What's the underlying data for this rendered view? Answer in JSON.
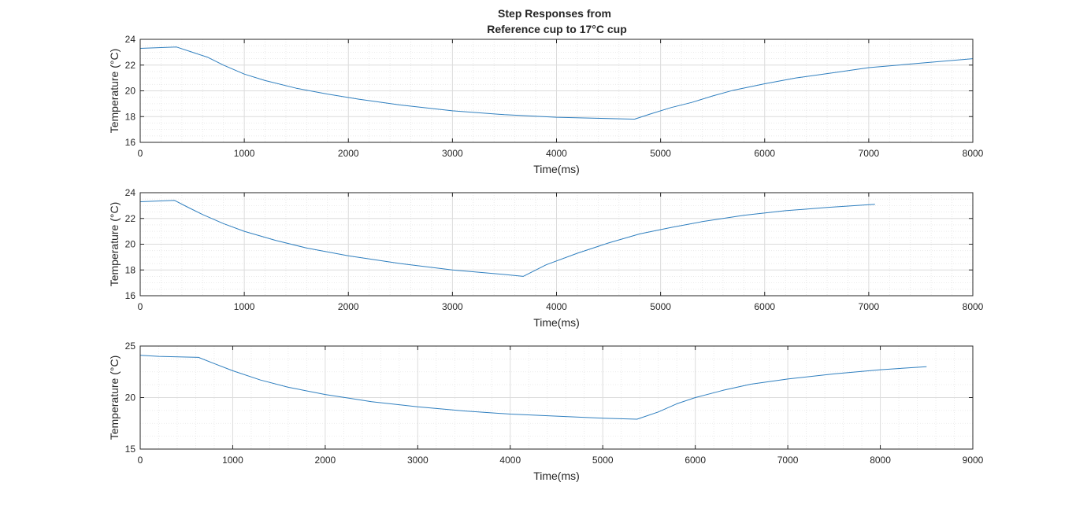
{
  "figure": {
    "title_line1": "Step Responses from",
    "title_line2": "Reference cup to 17°C cup"
  },
  "colors": {
    "line": "#2f7fbf",
    "grid_major": "#dcdcdc",
    "grid_minor": "#e6e6e6",
    "axes": "#262626",
    "background": "#ffffff"
  },
  "chart_data": [
    {
      "type": "line",
      "xlabel": "Time(ms)",
      "ylabel": "Temperature (°C)",
      "xlim": [
        0,
        8000
      ],
      "ylim": [
        16,
        24
      ],
      "xticks": [
        0,
        1000,
        2000,
        3000,
        4000,
        5000,
        6000,
        7000,
        8000
      ],
      "yticks": [
        16,
        18,
        20,
        22,
        24
      ],
      "grid": true,
      "minor_grid": true,
      "series": [
        {
          "x": [
            0,
            350,
            500,
            650,
            800,
            1000,
            1200,
            1500,
            1800,
            2100,
            2500,
            3000,
            3500,
            4000,
            4500,
            4750,
            4900,
            5100,
            5300,
            5500,
            5700,
            6000,
            6300,
            6700,
            7000,
            7500,
            8000
          ],
          "y": [
            23.3,
            23.4,
            23.0,
            22.6,
            22.0,
            21.3,
            20.8,
            20.2,
            19.75,
            19.35,
            18.9,
            18.45,
            18.15,
            17.95,
            17.85,
            17.8,
            18.2,
            18.7,
            19.1,
            19.6,
            20.05,
            20.55,
            21.0,
            21.45,
            21.8,
            22.15,
            22.5
          ]
        }
      ]
    },
    {
      "type": "line",
      "xlabel": "Time(ms)",
      "ylabel": "Temperature (°C)",
      "xlim": [
        0,
        8000
      ],
      "ylim": [
        16,
        24
      ],
      "xticks": [
        0,
        1000,
        2000,
        3000,
        4000,
        5000,
        6000,
        7000,
        8000
      ],
      "yticks": [
        16,
        18,
        20,
        22,
        24
      ],
      "grid": true,
      "minor_grid": true,
      "series": [
        {
          "x": [
            0,
            330,
            450,
            600,
            800,
            1000,
            1300,
            1600,
            2000,
            2500,
            3000,
            3500,
            3680,
            3900,
            4200,
            4500,
            4800,
            5100,
            5400,
            5800,
            6200,
            6600,
            7060
          ],
          "y": [
            23.3,
            23.4,
            22.9,
            22.3,
            21.6,
            21.0,
            20.3,
            19.7,
            19.1,
            18.5,
            18.0,
            17.65,
            17.5,
            18.4,
            19.3,
            20.1,
            20.8,
            21.3,
            21.75,
            22.25,
            22.6,
            22.85,
            23.1
          ]
        }
      ]
    },
    {
      "type": "line",
      "xlabel": "Time(ms)",
      "ylabel": "Temperature (°C)",
      "xlim": [
        0,
        9000
      ],
      "ylim": [
        15,
        25
      ],
      "xticks": [
        0,
        1000,
        2000,
        3000,
        4000,
        5000,
        6000,
        7000,
        8000,
        9000
      ],
      "yticks": [
        15,
        20,
        25
      ],
      "grid": true,
      "minor_grid": true,
      "series": [
        {
          "x": [
            0,
            200,
            630,
            800,
            1000,
            1300,
            1600,
            2000,
            2500,
            3000,
            3500,
            4000,
            4500,
            5000,
            5370,
            5600,
            5800,
            6000,
            6300,
            6600,
            7000,
            7500,
            8000,
            8500
          ],
          "y": [
            24.1,
            24.0,
            23.9,
            23.3,
            22.6,
            21.7,
            21.0,
            20.3,
            19.6,
            19.1,
            18.7,
            18.4,
            18.2,
            18.0,
            17.9,
            18.6,
            19.4,
            20.0,
            20.7,
            21.3,
            21.8,
            22.3,
            22.7,
            23.0
          ]
        }
      ]
    }
  ]
}
